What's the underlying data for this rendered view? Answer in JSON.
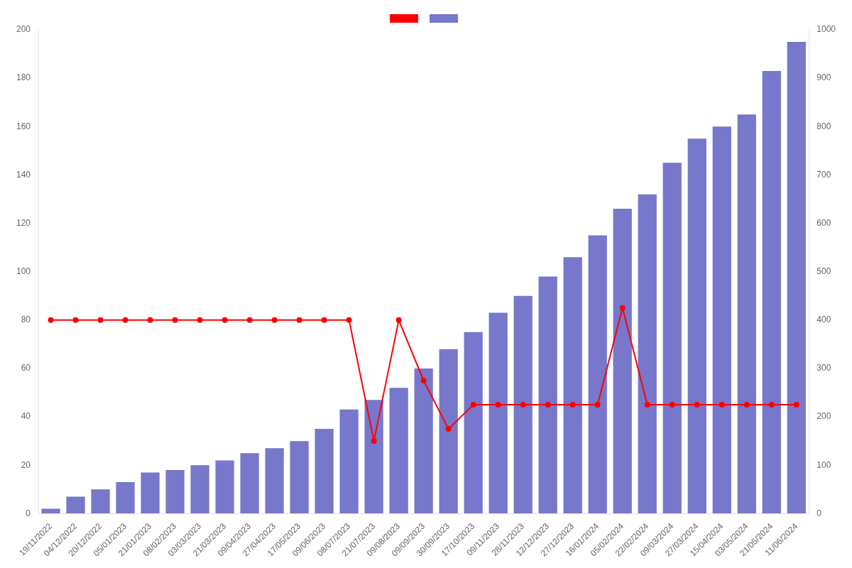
{
  "chart_data": {
    "type": "bar",
    "categories": [
      "19/11/2022",
      "04/12/2022",
      "20/12/2022",
      "05/01/2023",
      "21/01/2023",
      "08/02/2023",
      "03/03/2023",
      "21/03/2023",
      "09/04/2023",
      "27/04/2023",
      "17/05/2023",
      "09/06/2023",
      "08/07/2023",
      "21/07/2023",
      "09/08/2023",
      "09/09/2023",
      "30/09/2023",
      "17/10/2023",
      "09/11/2023",
      "28/11/2023",
      "12/12/2023",
      "27/12/2023",
      "16/01/2024",
      "05/02/2024",
      "22/02/2024",
      "09/03/2024",
      "27/03/2024",
      "15/04/2024",
      "03/05/2024",
      "21/05/2024",
      "11/06/2024"
    ],
    "series": [
      {
        "type": "line",
        "color": "#ff0000",
        "marker": "circle",
        "axis": "y",
        "values": [
          80,
          80,
          80,
          80,
          80,
          80,
          80,
          80,
          80,
          80,
          80,
          80,
          80,
          30,
          80,
          55,
          35,
          45,
          45,
          45,
          45,
          45,
          45,
          85,
          45,
          45,
          45,
          45,
          45,
          45,
          45
        ]
      },
      {
        "type": "bar",
        "color": "#7777cc",
        "axis": "y",
        "values": [
          2,
          7,
          10,
          13,
          17,
          18,
          20,
          22,
          25,
          27,
          30,
          35,
          43,
          47,
          52,
          60,
          68,
          75,
          83,
          90,
          98,
          106,
          115,
          126,
          132,
          145,
          155,
          160,
          165,
          183,
          195
        ]
      }
    ],
    "ylim": [
      0,
      200
    ],
    "yticks": [
      0,
      20,
      40,
      60,
      80,
      100,
      120,
      140,
      160,
      180,
      200
    ],
    "y2lim": [
      0,
      1000
    ],
    "y2ticks": [
      0,
      100,
      200,
      300,
      400,
      500,
      600,
      700,
      800,
      900,
      1000
    ],
    "grid": false,
    "legend": "top"
  }
}
